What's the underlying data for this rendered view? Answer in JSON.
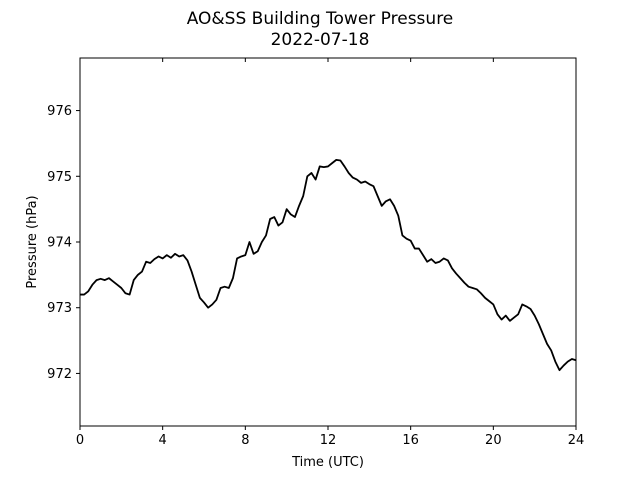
{
  "chart_data": {
    "type": "line",
    "title": "AO&SS Building Tower Pressure",
    "subtitle": "2022-07-18",
    "xlabel": "Time (UTC)",
    "ylabel": "Pressure (hPa)",
    "xlim": [
      0,
      24
    ],
    "ylim": [
      971.2,
      976.8
    ],
    "xticks": [
      0,
      4,
      8,
      12,
      16,
      20,
      24
    ],
    "yticks": [
      972,
      973,
      974,
      975,
      976
    ],
    "grid": false,
    "line_color": "#000000",
    "series": [
      {
        "x": [
          0.0,
          0.2,
          0.4,
          0.6,
          0.8,
          1.0,
          1.2,
          1.4,
          1.6,
          1.8,
          2.0,
          2.2,
          2.4,
          2.6,
          2.8,
          3.0,
          3.2,
          3.4,
          3.6,
          3.8,
          4.0,
          4.2,
          4.4,
          4.6,
          4.8,
          5.0,
          5.2,
          5.4,
          5.6,
          5.8,
          6.0,
          6.2,
          6.4,
          6.6,
          6.8,
          7.0,
          7.2,
          7.4,
          7.6,
          7.8,
          8.0,
          8.2,
          8.4,
          8.6,
          8.8,
          9.0,
          9.2,
          9.4,
          9.6,
          9.8,
          10.0,
          10.2,
          10.4,
          10.6,
          10.8,
          11.0,
          11.2,
          11.4,
          11.6,
          11.8,
          12.0,
          12.2,
          12.4,
          12.6,
          12.8,
          13.0,
          13.2,
          13.4,
          13.6,
          13.8,
          14.0,
          14.2,
          14.4,
          14.6,
          14.8,
          15.0,
          15.2,
          15.4,
          15.6,
          15.8,
          16.0,
          16.2,
          16.4,
          16.6,
          16.8,
          17.0,
          17.2,
          17.4,
          17.6,
          17.8,
          18.0,
          18.2,
          18.4,
          18.6,
          18.8,
          19.0,
          19.2,
          19.4,
          19.6,
          19.8,
          20.0,
          20.2,
          20.4,
          20.6,
          20.8,
          21.0,
          21.2,
          21.4,
          21.6,
          21.8,
          22.0,
          22.2,
          22.4,
          22.6,
          22.8,
          23.0,
          23.2,
          23.4,
          23.6,
          23.8,
          24.0
        ],
        "values": [
          973.2,
          973.2,
          973.25,
          973.35,
          973.42,
          973.44,
          973.42,
          973.45,
          973.4,
          973.35,
          973.3,
          973.22,
          973.2,
          973.42,
          973.5,
          973.55,
          973.7,
          973.68,
          973.74,
          973.78,
          973.75,
          973.8,
          973.76,
          973.82,
          973.78,
          973.8,
          973.72,
          973.55,
          973.35,
          973.15,
          973.08,
          973.0,
          973.05,
          973.12,
          973.3,
          973.32,
          973.3,
          973.45,
          973.75,
          973.78,
          973.8,
          974.0,
          973.82,
          973.86,
          974.0,
          974.1,
          974.35,
          974.38,
          974.25,
          974.3,
          974.5,
          974.42,
          974.38,
          974.55,
          974.7,
          975.0,
          975.05,
          974.95,
          975.15,
          975.14,
          975.15,
          975.2,
          975.25,
          975.24,
          975.15,
          975.05,
          974.98,
          974.95,
          974.9,
          974.92,
          974.88,
          974.85,
          974.7,
          974.55,
          974.62,
          974.65,
          974.55,
          974.4,
          974.1,
          974.05,
          974.02,
          973.9,
          973.9,
          973.8,
          973.7,
          973.74,
          973.68,
          973.7,
          973.75,
          973.72,
          973.6,
          973.52,
          973.45,
          973.38,
          973.32,
          973.3,
          973.28,
          973.22,
          973.15,
          973.1,
          973.05,
          972.9,
          972.82,
          972.88,
          972.8,
          972.85,
          972.9,
          973.05,
          973.02,
          972.98,
          972.88,
          972.75,
          972.6,
          972.45,
          972.35,
          972.18,
          972.05,
          972.12,
          972.18,
          972.22,
          972.2
        ]
      }
    ]
  }
}
